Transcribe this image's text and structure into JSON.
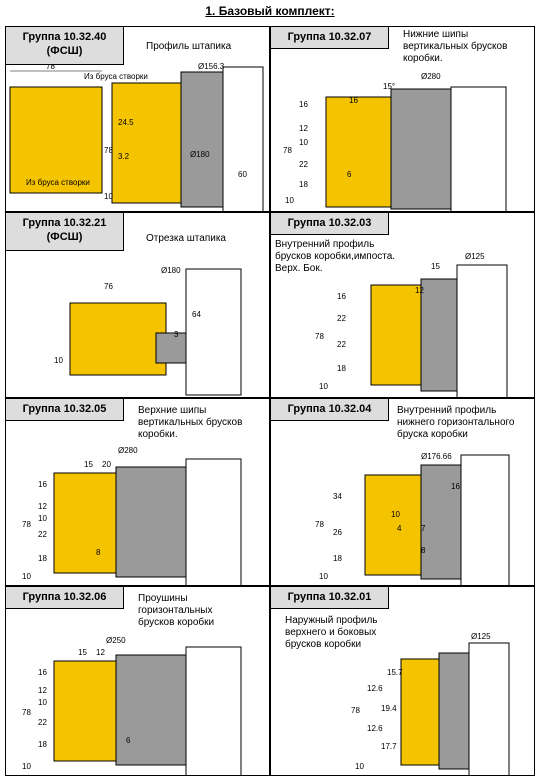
{
  "header": {
    "title": "1. Базовый комплект:"
  },
  "colors": {
    "part": "#f5c400",
    "cutter": "#9a9a9a",
    "outline": "#000000"
  },
  "panels": [
    {
      "group": "Группа 10.32.40",
      "sub": "(ФСШ)",
      "caption": "Профиль штапика",
      "notes": [
        "Из бруса створки",
        "Из бруса створки"
      ],
      "dims": [
        "78",
        "Ø156.3",
        "24.5",
        "3.2",
        "Ø180",
        "60",
        "78",
        "10"
      ]
    },
    {
      "group": "Группа 10.32.07",
      "caption": "Нижние шипы вертикальных брусков коробки.",
      "dims": [
        "Ø280",
        "15°",
        "16",
        "16",
        "12",
        "10",
        "22",
        "18",
        "6",
        "78",
        "10"
      ]
    },
    {
      "group": "Группа 10.32.21",
      "sub": "(ФСШ)",
      "caption": "Отрезка штапика",
      "dims": [
        "Ø180",
        "76",
        "64",
        "3",
        "10"
      ]
    },
    {
      "group": "Группа 10.32.03",
      "caption": "Внутренний профиль брусков коробки,импоста. Верх. Бок.",
      "dims": [
        "Ø125",
        "15",
        "12",
        "16",
        "22",
        "22",
        "18",
        "78",
        "10"
      ]
    },
    {
      "group": "Группа 10.32.05",
      "caption": "Верхние шипы вертикальных брусков коробки.",
      "dims": [
        "Ø280",
        "15",
        "20",
        "16",
        "12",
        "10",
        "22",
        "18",
        "8",
        "78",
        "10"
      ]
    },
    {
      "group": "Группа 10.32.04",
      "caption": "Внутренний профиль нижнего горизонтального бруска коробки",
      "dims": [
        "Ø176.66",
        "16",
        "34",
        "10",
        "4",
        "7",
        "26",
        "8",
        "18",
        "78",
        "10"
      ]
    },
    {
      "group": "Группа 10.32.06",
      "caption": "Проушины горизонтальных брусков коробки",
      "dims": [
        "Ø250",
        "15",
        "12",
        "16",
        "12",
        "10",
        "22",
        "18",
        "6",
        "78",
        "10"
      ]
    },
    {
      "group": "Группа 10.32.01",
      "caption": "Наружный профиль верхнего и боковых брусков коробки",
      "dims": [
        "Ø125",
        "15.7",
        "12.6",
        "19.4",
        "12.6",
        "17.7",
        "78",
        "10"
      ]
    }
  ]
}
